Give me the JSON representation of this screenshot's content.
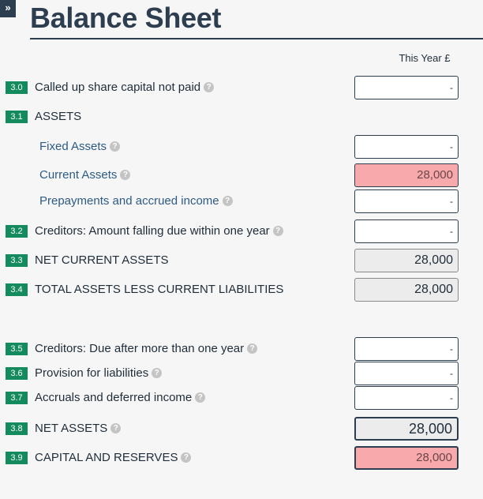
{
  "header": {
    "expand_glyph": "»",
    "title": "Balance Sheet",
    "column_header": "This Year £"
  },
  "rows": [
    {
      "num": "3.0",
      "label": "Called up share capital not paid",
      "help": "?",
      "value": "-"
    },
    {
      "num": "3.1",
      "label": "ASSETS"
    },
    {
      "label": "Fixed Assets",
      "help": "?",
      "value": "-"
    },
    {
      "label": "Current Assets",
      "help": "?",
      "value": "28,000"
    },
    {
      "label": "Prepayments and accrued income",
      "help": "?",
      "value": "-"
    },
    {
      "num": "3.2",
      "label": "Creditors: Amount falling due within one year",
      "help": "?",
      "value": "-"
    },
    {
      "num": "3.3",
      "label": "NET CURRENT ASSETS",
      "value": "28,000"
    },
    {
      "num": "3.4",
      "label": "TOTAL ASSETS LESS CURRENT LIABILITIES",
      "value": "28,000"
    },
    {
      "num": "3.5",
      "label": "Creditors: Due after more than one year",
      "help": "?",
      "value": "-"
    },
    {
      "num": "3.6",
      "label": "Provision for liabilities",
      "help": "?",
      "value": "-"
    },
    {
      "num": "3.7",
      "label": "Accruals and deferred income",
      "help": "?",
      "value": "-"
    },
    {
      "num": "3.8",
      "label": "NET ASSETS",
      "help": "?",
      "value": "28,000"
    },
    {
      "num": "3.9",
      "label": "CAPITAL AND RESERVES",
      "help": "?",
      "value": "28,000"
    }
  ],
  "colors": {
    "badge": "#148a5f",
    "title": "#2d3e50",
    "highlight": "#f7a9ab",
    "computed": "#ececec"
  }
}
